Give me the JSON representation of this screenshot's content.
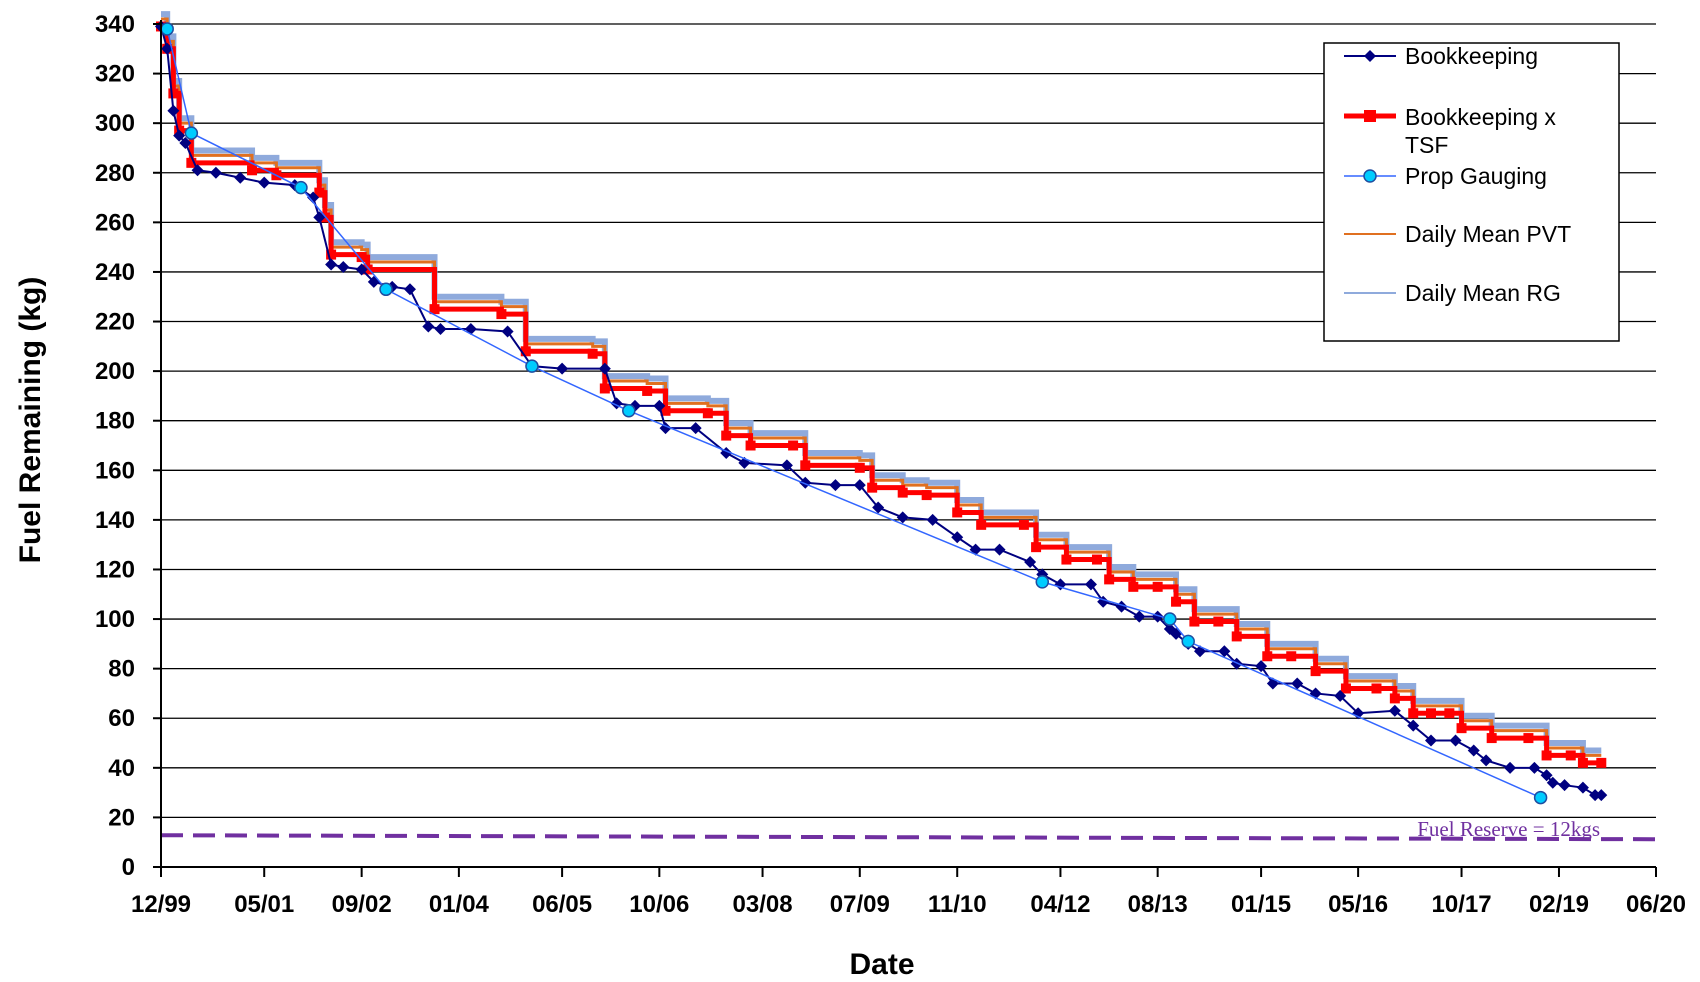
{
  "chart_data": {
    "type": "line",
    "xlabel": "Date",
    "ylabel": "Fuel Remaining (kg)",
    "x_tick_labels": [
      "12/99",
      "05/01",
      "09/02",
      "01/04",
      "06/05",
      "10/06",
      "03/08",
      "07/09",
      "11/10",
      "04/12",
      "08/13",
      "01/15",
      "05/16",
      "10/17",
      "02/19",
      "06/20"
    ],
    "x_tick_dates": [
      "1999-12",
      "2001-05",
      "2002-09",
      "2004-01",
      "2005-06",
      "2006-10",
      "2008-03",
      "2009-07",
      "2010-11",
      "2012-04",
      "2013-08",
      "2015-01",
      "2016-05",
      "2017-10",
      "2019-02",
      "2020-06"
    ],
    "xlim": [
      "1999-12-01",
      "2020-06-01"
    ],
    "ylim": [
      0,
      340
    ],
    "y_ticks": [
      0,
      20,
      40,
      60,
      80,
      100,
      120,
      140,
      160,
      180,
      200,
      220,
      240,
      260,
      280,
      300,
      320,
      340
    ],
    "grid": "horizontal",
    "legend_position": "top-right",
    "series": [
      {
        "name": "Bookkeeping",
        "color": "#000080",
        "marker": "diamond",
        "points": [
          [
            "1999-12-01",
            339
          ],
          [
            "2000-01-01",
            330
          ],
          [
            "2000-02-01",
            305
          ],
          [
            "2000-03-01",
            295
          ],
          [
            "2000-04-01",
            292
          ],
          [
            "2000-06-01",
            281
          ],
          [
            "2000-09-01",
            280
          ],
          [
            "2001-01-01",
            278
          ],
          [
            "2001-05-01",
            276
          ],
          [
            "2001-10-01",
            275
          ],
          [
            "2002-01-01",
            270
          ],
          [
            "2002-02-01",
            262
          ],
          [
            "2002-04-01",
            243
          ],
          [
            "2002-06-01",
            242
          ],
          [
            "2002-09-01",
            241
          ],
          [
            "2002-11-01",
            236
          ],
          [
            "2003-02-01",
            234
          ],
          [
            "2003-05-01",
            233
          ],
          [
            "2003-08-01",
            218
          ],
          [
            "2003-10-01",
            217
          ],
          [
            "2004-03-01",
            217
          ],
          [
            "2004-09-01",
            216
          ],
          [
            "2005-01-01",
            202
          ],
          [
            "2005-06-01",
            201
          ],
          [
            "2006-01-01",
            201
          ],
          [
            "2006-03-01",
            187
          ],
          [
            "2006-06-01",
            186
          ],
          [
            "2006-10-01",
            186
          ],
          [
            "2006-11-01",
            177
          ],
          [
            "2007-04-01",
            177
          ],
          [
            "2007-09-01",
            167
          ],
          [
            "2007-12-01",
            163
          ],
          [
            "2008-07-01",
            162
          ],
          [
            "2008-10-01",
            155
          ],
          [
            "2009-03-01",
            154
          ],
          [
            "2009-07-01",
            154
          ],
          [
            "2009-10-01",
            145
          ],
          [
            "2010-02-01",
            141
          ],
          [
            "2010-07-01",
            140
          ],
          [
            "2010-11-01",
            133
          ],
          [
            "2011-02-01",
            128
          ],
          [
            "2011-06-01",
            128
          ],
          [
            "2011-11-01",
            123
          ],
          [
            "2012-01-01",
            118
          ],
          [
            "2012-04-01",
            114
          ],
          [
            "2012-09-01",
            114
          ],
          [
            "2012-11-01",
            107
          ],
          [
            "2013-02-01",
            105
          ],
          [
            "2013-05-01",
            101
          ],
          [
            "2013-08-01",
            101
          ],
          [
            "2013-10-01",
            96
          ],
          [
            "2013-11-01",
            94
          ],
          [
            "2014-01-01",
            90
          ],
          [
            "2014-03-01",
            87
          ],
          [
            "2014-07-01",
            87
          ],
          [
            "2014-09-01",
            82
          ],
          [
            "2015-01-01",
            81
          ],
          [
            "2015-03-01",
            74
          ],
          [
            "2015-07-01",
            74
          ],
          [
            "2015-10-01",
            70
          ],
          [
            "2016-02-01",
            69
          ],
          [
            "2016-05-01",
            62
          ],
          [
            "2016-11-01",
            63
          ],
          [
            "2017-02-01",
            57
          ],
          [
            "2017-05-01",
            51
          ],
          [
            "2017-09-01",
            51
          ],
          [
            "2017-12-01",
            47
          ],
          [
            "2018-02-01",
            43
          ],
          [
            "2018-06-01",
            40
          ],
          [
            "2018-10-01",
            40
          ],
          [
            "2018-12-01",
            37
          ],
          [
            "2019-01-01",
            34
          ],
          [
            "2019-03-01",
            33
          ],
          [
            "2019-06-01",
            32
          ],
          [
            "2019-08-01",
            29
          ],
          [
            "2019-09-01",
            29
          ]
        ]
      },
      {
        "name": "Bookkeeping x TSF",
        "color": "#ff0000",
        "marker": "square",
        "steps": [
          [
            "1999-12-01",
            339
          ],
          [
            "2000-01-01",
            330
          ],
          [
            "2000-02-01",
            312
          ],
          [
            "2000-03-01",
            297
          ],
          [
            "2000-05-01",
            284
          ],
          [
            "2001-03-01",
            281
          ],
          [
            "2001-07-01",
            279
          ],
          [
            "2002-02-01",
            272
          ],
          [
            "2002-03-01",
            262
          ],
          [
            "2002-04-01",
            247
          ],
          [
            "2002-09-01",
            246
          ],
          [
            "2002-10-01",
            241
          ],
          [
            "2003-09-01",
            225
          ],
          [
            "2004-08-01",
            223
          ],
          [
            "2004-12-01",
            208
          ],
          [
            "2005-11-01",
            207
          ],
          [
            "2006-01-01",
            193
          ],
          [
            "2006-08-01",
            192
          ],
          [
            "2006-11-01",
            184
          ],
          [
            "2007-06-01",
            183
          ],
          [
            "2007-09-01",
            174
          ],
          [
            "2008-01-01",
            170
          ],
          [
            "2008-08-01",
            170
          ],
          [
            "2008-10-01",
            162
          ],
          [
            "2009-07-01",
            161
          ],
          [
            "2009-09-01",
            153
          ],
          [
            "2010-02-01",
            151
          ],
          [
            "2010-06-01",
            150
          ],
          [
            "2010-11-01",
            143
          ],
          [
            "2011-03-01",
            138
          ],
          [
            "2011-10-01",
            138
          ],
          [
            "2011-12-01",
            129
          ],
          [
            "2012-05-01",
            124
          ],
          [
            "2012-10-01",
            124
          ],
          [
            "2012-12-01",
            116
          ],
          [
            "2013-04-01",
            113
          ],
          [
            "2013-08-01",
            113
          ],
          [
            "2013-11-01",
            107
          ],
          [
            "2014-02-01",
            99
          ],
          [
            "2014-06-01",
            99
          ],
          [
            "2014-09-01",
            93
          ],
          [
            "2015-02-01",
            85
          ],
          [
            "2015-06-01",
            85
          ],
          [
            "2015-10-01",
            79
          ],
          [
            "2016-03-01",
            72
          ],
          [
            "2016-08-01",
            72
          ],
          [
            "2016-11-01",
            68
          ],
          [
            "2017-02-01",
            62
          ],
          [
            "2017-05-01",
            62
          ],
          [
            "2017-08-01",
            62
          ],
          [
            "2017-10-01",
            56
          ],
          [
            "2018-03-01",
            52
          ],
          [
            "2018-09-01",
            52
          ],
          [
            "2018-12-01",
            45
          ],
          [
            "2019-04-01",
            45
          ],
          [
            "2019-06-01",
            42
          ],
          [
            "2019-09-01",
            42
          ]
        ]
      },
      {
        "name": "Prop Gauging",
        "color": "#00ccff",
        "line_color": "#3366ff",
        "marker": "circle",
        "points": [
          [
            "2000-01-01",
            338
          ],
          [
            "2000-05-01",
            296
          ],
          [
            "2001-11-01",
            274
          ],
          [
            "2003-01-01",
            233
          ],
          [
            "2005-01-01",
            202
          ],
          [
            "2006-05-01",
            184
          ],
          [
            "2012-01-01",
            115
          ],
          [
            "2013-10-01",
            100
          ],
          [
            "2014-01-01",
            91
          ],
          [
            "2018-11-01",
            28
          ]
        ]
      },
      {
        "name": "Daily Mean PVT",
        "color": "#e07020",
        "offset_from_red": 3
      },
      {
        "name": "Daily Mean RG",
        "color": "#8faadc",
        "offset_from_red": 5
      }
    ],
    "annotations": [
      {
        "text": "Fuel Reserve = 12kgs",
        "color": "#7030a0",
        "value": 12,
        "line_style": "dashed"
      }
    ]
  }
}
